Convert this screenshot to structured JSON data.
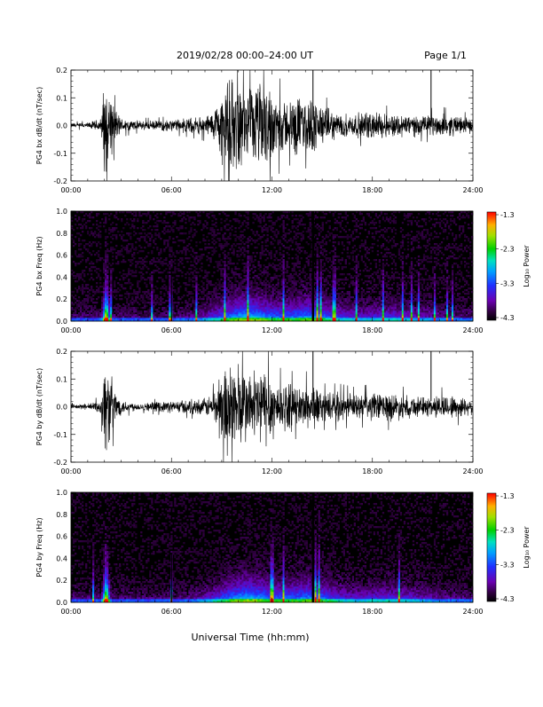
{
  "header": {
    "title": "2019/02/28  00:00–24:00 UT",
    "page": "Page 1/1"
  },
  "colorbar": {
    "label": "Log₁₀ Power",
    "ticks": [
      "-1.3",
      "-2.3",
      "-3.3",
      "-4.3"
    ]
  },
  "xaxis": {
    "label": "Universal Time (hh:mm)",
    "ticks": [
      "00:00",
      "06:00",
      "12:00",
      "18:00",
      "24:00"
    ]
  },
  "chart_data": [
    {
      "type": "line",
      "ylabel": "PG4 bx dB/dt (nT/sec)",
      "xlim": [
        0,
        24
      ],
      "ylim": [
        -0.2,
        0.2
      ],
      "yticks": [
        "0.2",
        "0.1",
        "0.0",
        "-0.1",
        "-0.2"
      ],
      "envelope": {
        "x": [
          0,
          1,
          1.8,
          2.0,
          2.3,
          2.6,
          3.0,
          4,
          5,
          6,
          7,
          8,
          8.5,
          9,
          9.5,
          10,
          10.5,
          11,
          11.5,
          12,
          12.5,
          13,
          13.5,
          14,
          14.5,
          15,
          16,
          17,
          18,
          19,
          20,
          21,
          22,
          23,
          24
        ],
        "amplitude": [
          0.01,
          0.012,
          0.03,
          0.2,
          0.15,
          0.08,
          0.03,
          0.02,
          0.02,
          0.025,
          0.03,
          0.04,
          0.06,
          0.15,
          0.2,
          0.18,
          0.14,
          0.17,
          0.2,
          0.15,
          0.12,
          0.1,
          0.13,
          0.11,
          0.12,
          0.08,
          0.05,
          0.05,
          0.06,
          0.05,
          0.05,
          0.04,
          0.05,
          0.04,
          0.03
        ]
      }
    },
    {
      "type": "heatmap",
      "ylabel": "PG4 bx Freq (Hz)",
      "xlim": [
        0,
        24
      ],
      "ylim": [
        0,
        1.0
      ],
      "yticks": [
        "1.0",
        "0.8",
        "0.6",
        "0.4",
        "0.2",
        "0.0"
      ],
      "zlabel": "Log₁₀ Power",
      "zlim": [
        -4.3,
        -1.3
      ]
    },
    {
      "type": "line",
      "ylabel": "PG4 by dB/dt (nT/sec)",
      "xlim": [
        0,
        24
      ],
      "ylim": [
        -0.2,
        0.2
      ],
      "yticks": [
        "0.2",
        "0.1",
        "0.0",
        "-0.1",
        "-0.2"
      ],
      "envelope": {
        "x": [
          0,
          1,
          1.8,
          2.0,
          2.3,
          2.6,
          3.0,
          4,
          5,
          6,
          7,
          8,
          8.5,
          9,
          9.5,
          10,
          10.5,
          11,
          11.5,
          12,
          12.5,
          13,
          13.5,
          14,
          14.5,
          15,
          16,
          17,
          18,
          19,
          20,
          21,
          22,
          23,
          24
        ],
        "amplitude": [
          0.01,
          0.012,
          0.03,
          0.2,
          0.16,
          0.08,
          0.03,
          0.015,
          0.02,
          0.025,
          0.03,
          0.035,
          0.06,
          0.17,
          0.2,
          0.19,
          0.15,
          0.16,
          0.18,
          0.14,
          0.1,
          0.1,
          0.08,
          0.09,
          0.1,
          0.06,
          0.06,
          0.05,
          0.06,
          0.06,
          0.05,
          0.04,
          0.05,
          0.05,
          0.03
        ]
      }
    },
    {
      "type": "heatmap",
      "ylabel": "PG4 by Freq (Hz)",
      "xlim": [
        0,
        24
      ],
      "ylim": [
        0,
        1.0
      ],
      "yticks": [
        "1.0",
        "0.8",
        "0.6",
        "0.4",
        "0.2",
        "0.0"
      ],
      "zlabel": "Log₁₀ Power",
      "zlim": [
        -4.3,
        -1.3
      ]
    }
  ]
}
